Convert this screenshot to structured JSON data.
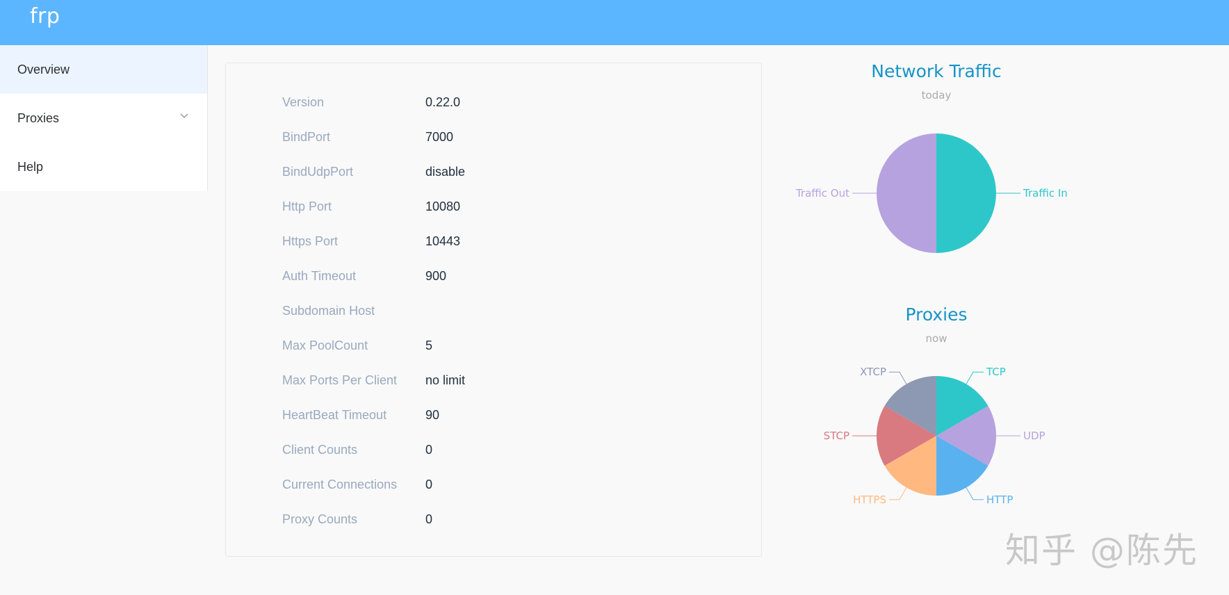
{
  "header": {
    "brand": "frp",
    "color": "#5cb6ff"
  },
  "sidebar": {
    "items": [
      {
        "label": "Overview",
        "active": true
      },
      {
        "label": "Proxies",
        "has_submenu": true,
        "icon": "chevron-down-icon"
      },
      {
        "label": "Help"
      }
    ]
  },
  "overview": {
    "rows": [
      {
        "key": "Version",
        "value": "0.22.0"
      },
      {
        "key": "BindPort",
        "value": "7000"
      },
      {
        "key": "BindUdpPort",
        "value": "disable"
      },
      {
        "key": "Http Port",
        "value": "10080"
      },
      {
        "key": "Https Port",
        "value": "10443"
      },
      {
        "key": "Auth Timeout",
        "value": "900"
      },
      {
        "key": "Subdomain Host",
        "value": ""
      },
      {
        "key": "Max PoolCount",
        "value": "5"
      },
      {
        "key": "Max Ports Per Client",
        "value": "no limit"
      },
      {
        "key": "HeartBeat Timeout",
        "value": "90"
      },
      {
        "key": "Client Counts",
        "value": "0"
      },
      {
        "key": "Current Connections",
        "value": "0"
      },
      {
        "key": "Proxy Counts",
        "value": "0"
      }
    ]
  },
  "chart_data": [
    {
      "type": "pie",
      "title": "Network Traffic",
      "subtitle": "today",
      "slices": [
        {
          "name": "Traffic In",
          "value": 1,
          "color": "#2ec7c9"
        },
        {
          "name": "Traffic Out",
          "value": 1,
          "color": "#b6a2de"
        }
      ]
    },
    {
      "type": "pie",
      "title": "Proxies",
      "subtitle": "now",
      "slices": [
        {
          "name": "TCP",
          "value": 1,
          "color": "#2ec7c9"
        },
        {
          "name": "UDP",
          "value": 1,
          "color": "#b6a2de"
        },
        {
          "name": "HTTP",
          "value": 1,
          "color": "#5ab1ef"
        },
        {
          "name": "HTTPS",
          "value": 1,
          "color": "#ffb980"
        },
        {
          "name": "STCP",
          "value": 1,
          "color": "#d87a80"
        },
        {
          "name": "XTCP",
          "value": 1,
          "color": "#8d98b3"
        }
      ]
    }
  ],
  "watermark": "知乎 @陈先"
}
